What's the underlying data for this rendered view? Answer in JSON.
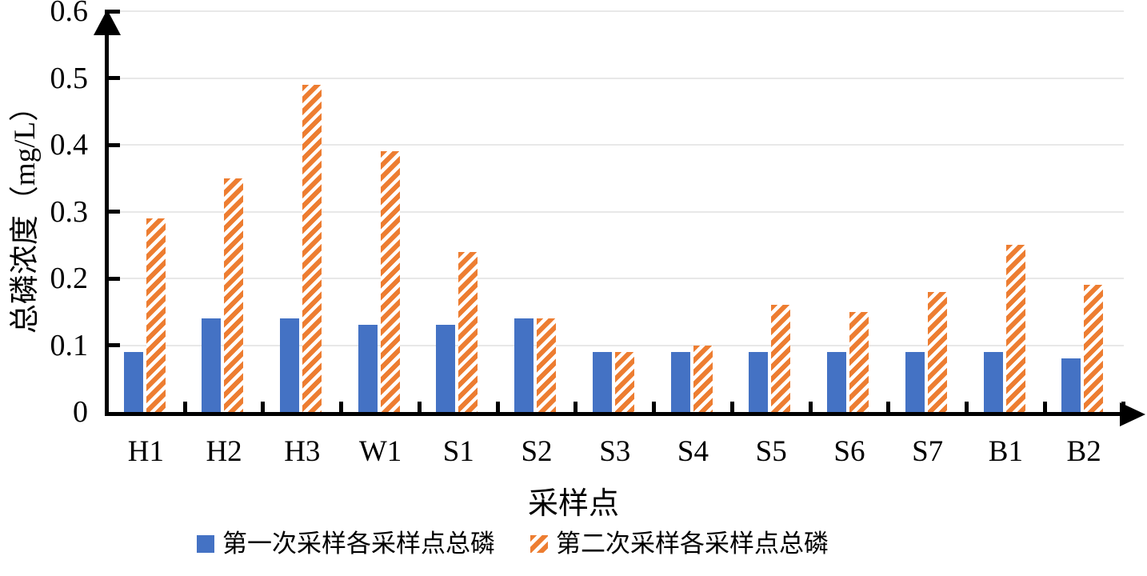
{
  "chart_data": {
    "type": "bar",
    "title": "",
    "xlabel": "采样点",
    "ylabel": "总磷浓度（mg/L）",
    "categories": [
      "H1",
      "H2",
      "H3",
      "W1",
      "S1",
      "S2",
      "S3",
      "S4",
      "S5",
      "S6",
      "S7",
      "B1",
      "B2"
    ],
    "series": [
      {
        "name": "第一次采样各采样点总磷",
        "color": "#4472C4",
        "fill": "solid",
        "values": [
          0.09,
          0.14,
          0.14,
          0.13,
          0.13,
          0.14,
          0.09,
          0.09,
          0.09,
          0.09,
          0.09,
          0.09,
          0.08
        ]
      },
      {
        "name": "第二次采样各采样点总磷",
        "color": "#ED7D31",
        "fill": "diagonal-hatch",
        "values": [
          0.29,
          0.35,
          0.49,
          0.39,
          0.24,
          0.14,
          0.09,
          0.1,
          0.16,
          0.15,
          0.18,
          0.25,
          0.19
        ]
      }
    ],
    "ylim": [
      0,
      0.6
    ],
    "ytick_step": 0.1,
    "ytick_labels": [
      "0",
      "0.1",
      "0.2",
      "0.3",
      "0.4",
      "0.5",
      "0.6"
    ],
    "grid": true,
    "legend_position": "bottom",
    "axis_color": "#000000",
    "gridline_color": "#E8E8E8",
    "background_color": "#FFFFFF"
  }
}
